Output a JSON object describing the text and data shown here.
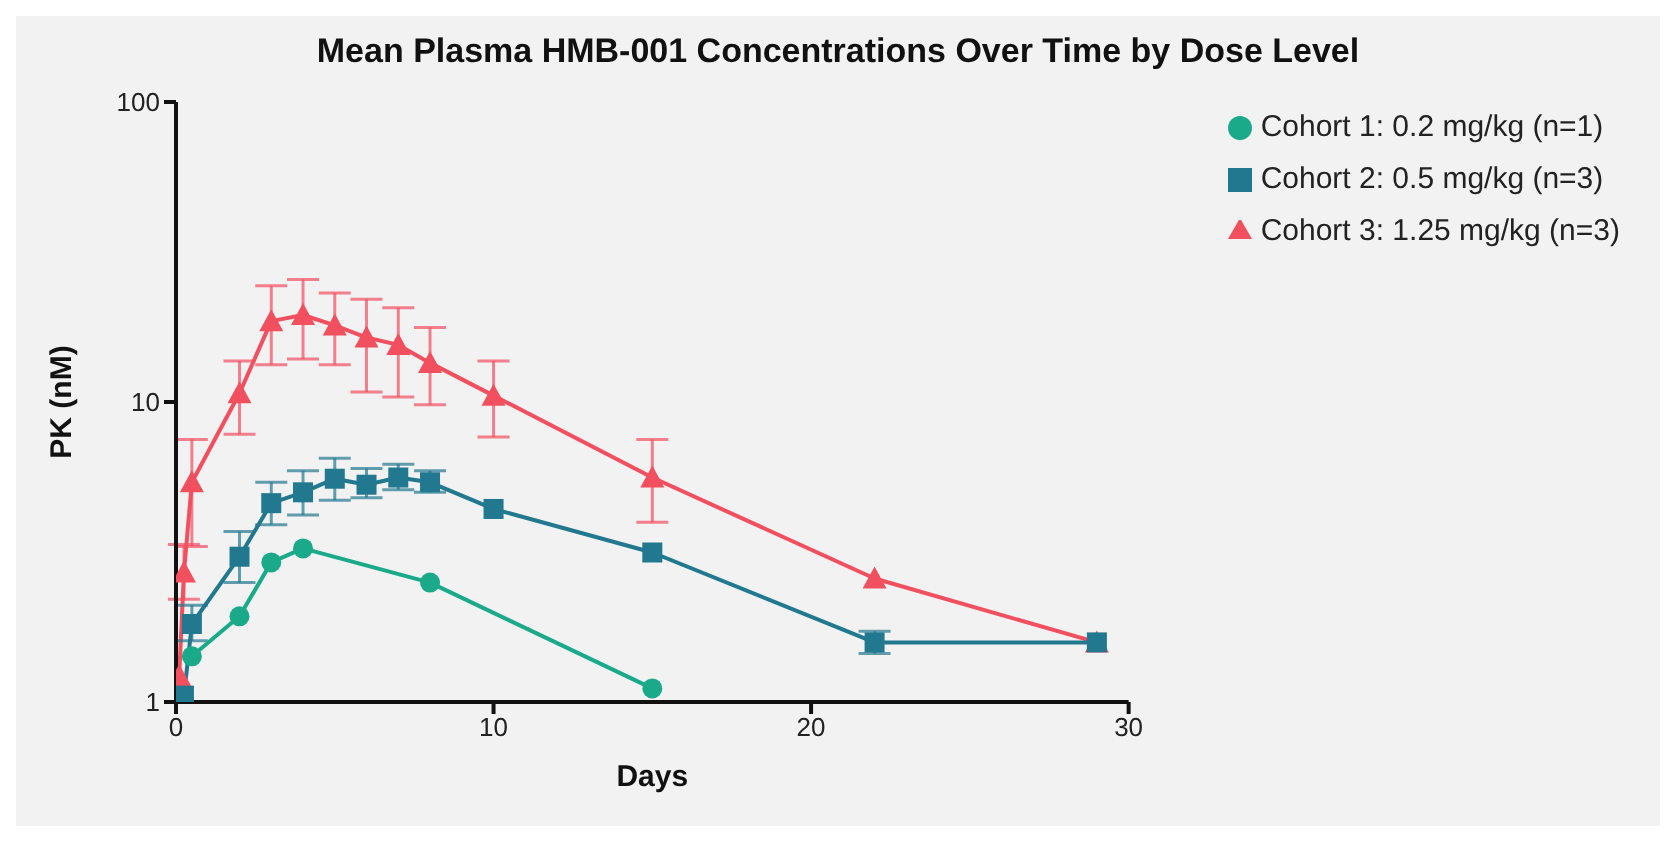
{
  "chart_data": {
    "type": "line",
    "title": "Mean Plasma HMB-001 Concentrations Over Time by Dose Level",
    "xlabel": "Days",
    "ylabel": "PK (nM)",
    "log": "y",
    "xlim": [
      0,
      30
    ],
    "xticks": [
      0,
      10,
      20,
      30
    ],
    "ylim": [
      1,
      100
    ],
    "yticks": [
      1,
      10,
      100
    ],
    "grid": false,
    "legend": "top right",
    "line_style": "solid",
    "series": [
      {
        "name": "Cohort 1: 0.2 mg/kg (n=1)",
        "color": "#1aaa8a",
        "marker": "circle",
        "x": [
          0.5,
          2,
          3,
          4,
          8,
          15
        ],
        "values": [
          1.42,
          1.93,
          2.92,
          3.25,
          2.5,
          1.11
        ]
      },
      {
        "name": "Cohort 2: 0.5 mg/kg (n=3)",
        "color": "#22788e",
        "marker": "square",
        "x": [
          0.25,
          0.5,
          2,
          3,
          4,
          5,
          6,
          7,
          8,
          10,
          15,
          22,
          29
        ],
        "values": [
          1.05,
          1.82,
          3.05,
          4.6,
          5.0,
          5.55,
          5.3,
          5.6,
          5.4,
          4.4,
          3.15,
          1.58,
          1.58
        ],
        "errors": [
          null,
          [
            1.6,
            2.1
          ],
          [
            2.5,
            3.7
          ],
          [
            3.9,
            5.4
          ],
          [
            4.2,
            5.9
          ],
          [
            4.7,
            6.5
          ],
          [
            4.8,
            6.0
          ],
          [
            5.1,
            6.2
          ],
          [
            5.0,
            5.9
          ],
          null,
          null,
          [
            1.45,
            1.72
          ],
          null
        ]
      },
      {
        "name": "Cohort 3: 1.25 mg/kg (n=3)",
        "color": "#f24f5f",
        "marker": "triangle",
        "x": [
          0.1,
          0.25,
          0.5,
          2,
          3,
          4,
          5,
          6,
          7,
          8,
          10,
          15,
          22,
          29
        ],
        "values": [
          1.22,
          2.7,
          5.4,
          10.7,
          18.6,
          19.5,
          18.0,
          16.4,
          15.5,
          13.5,
          10.5,
          5.6,
          2.58,
          1.58
        ],
        "errors": [
          null,
          [
            2.2,
            3.35
          ],
          [
            3.3,
            7.5
          ],
          [
            7.8,
            13.7
          ],
          [
            13.3,
            24.4
          ],
          [
            13.9,
            25.6
          ],
          [
            13.3,
            23.1
          ],
          [
            10.8,
            22.0
          ],
          [
            10.4,
            20.6
          ],
          [
            9.8,
            17.7
          ],
          [
            7.65,
            13.7
          ],
          [
            3.97,
            7.5
          ],
          null,
          null
        ]
      }
    ]
  }
}
